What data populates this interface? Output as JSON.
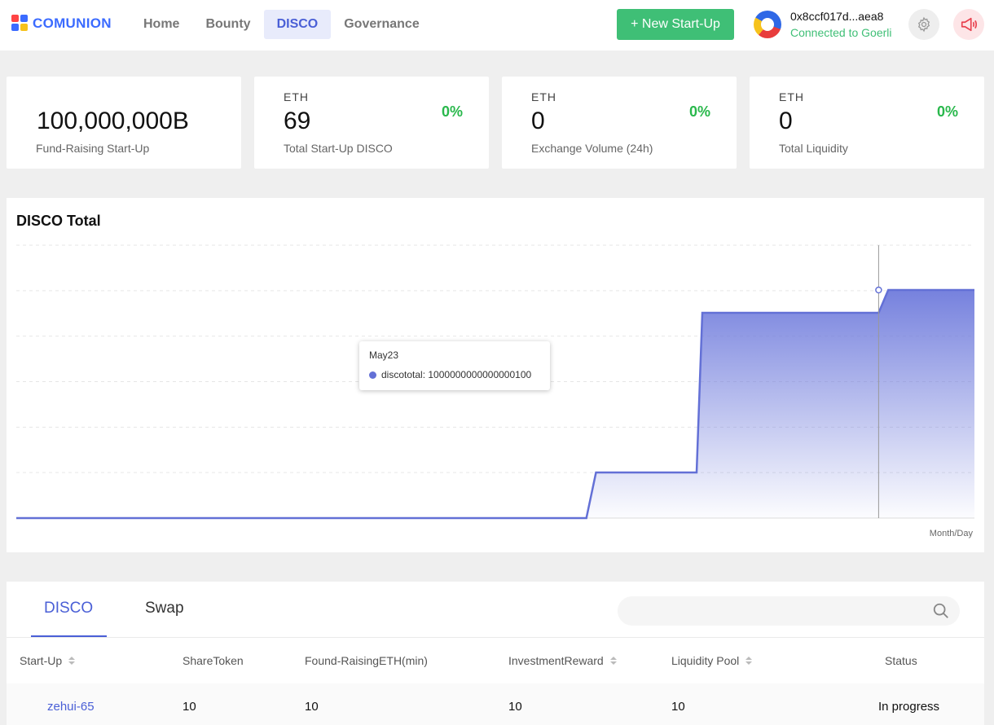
{
  "header": {
    "logo_text": "COMUNION",
    "nav": [
      {
        "label": "Home",
        "active": false
      },
      {
        "label": "Bounty",
        "active": false
      },
      {
        "label": "DISCO",
        "active": true
      },
      {
        "label": "Governance",
        "active": false
      }
    ],
    "new_startup_label": "+ New Start-Up",
    "wallet_address": "0x8ccf017d...aea8",
    "wallet_status": "Connected to Goerli",
    "icons": {
      "settings": "gear-icon",
      "sound": "megaphone-icon",
      "avatar": "wallet-avatar"
    }
  },
  "stats": [
    {
      "currency": "",
      "value": "100,000,000B",
      "label": "Fund-Raising Start-Up",
      "change": ""
    },
    {
      "currency": "ETH",
      "value": "69",
      "label": "Total Start-Up DISCO",
      "change": "0%"
    },
    {
      "currency": "ETH",
      "value": "0",
      "label": "Exchange Volume (24h)",
      "change": "0%"
    },
    {
      "currency": "ETH",
      "value": "0",
      "label": "Total Liquidity",
      "change": "0%"
    }
  ],
  "chart_panel": {
    "title": "DISCO Total",
    "tooltip_title": "May23",
    "tooltip_series": "discototal",
    "tooltip_value": "1000000000000000100",
    "x_axis_label": "Month/Day"
  },
  "chart_data": {
    "type": "area",
    "title": "DISCO Total",
    "xlabel": "Month/Day",
    "ylabel": "",
    "series": [
      {
        "name": "discototal",
        "x": [
          0,
          0.595,
          0.605,
          0.71,
          0.716,
          0.815,
          0.82,
          0.83,
          0.835,
          0.9,
          0.91,
          1.0
        ],
        "values": [
          0,
          0,
          0.2,
          0.2,
          0.9,
          0.9,
          0.9,
          0.9,
          0.9,
          0.9,
          1.0,
          1.0
        ]
      }
    ],
    "tooltip": {
      "x_label": "May23",
      "x": 0.9,
      "value": 1000000000000000100
    },
    "grid": "horizontal-dashed",
    "color": "#6370d6"
  },
  "tabs": [
    {
      "label": "DISCO",
      "active": true
    },
    {
      "label": "Swap",
      "active": false
    }
  ],
  "search": {
    "placeholder": "",
    "value": ""
  },
  "table": {
    "columns": [
      {
        "label": "Start-Up",
        "sortable": true
      },
      {
        "label": "ShareToken",
        "sortable": false
      },
      {
        "label": "Found-RaisingETH(min)",
        "sortable": false
      },
      {
        "label": "InvestmentReward",
        "sortable": true
      },
      {
        "label": "Liquidity Pool",
        "sortable": true
      },
      {
        "label": "Status",
        "sortable": false
      }
    ],
    "rows": [
      {
        "startup": "zehui-65",
        "share_token": "10",
        "found_raising": "10",
        "investment_reward": "10",
        "liquidity_pool": "10",
        "status": "In progress"
      }
    ]
  },
  "colors": {
    "accent": "#4a5fd6",
    "green": "#3fbf76",
    "change_green": "#29b84c",
    "series": "#6370d6"
  }
}
